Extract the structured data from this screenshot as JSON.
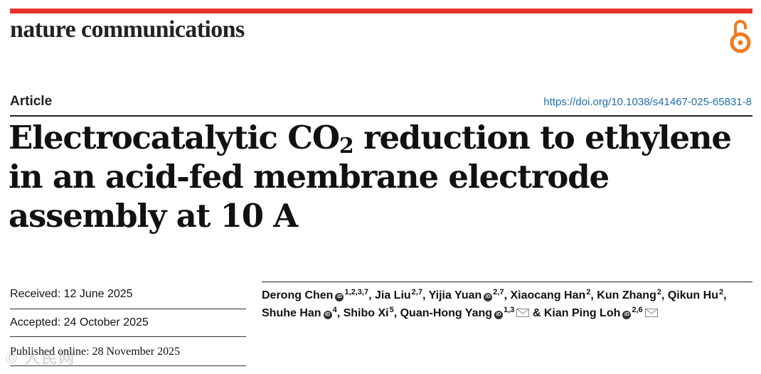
{
  "header": {
    "journal": "nature communications",
    "brand_color": "#e7332b",
    "oa_icon": "open-access-icon",
    "oa_color": "#f07c1e"
  },
  "meta": {
    "article_type": "Article",
    "doi": "https://doi.org/10.1038/s41467-025-65831-8"
  },
  "title": {
    "part1": "Electrocatalytic CO",
    "subscript": "2",
    "part2": " reduction to ethylene in an acid-fed membrane electrode assembly at 10 A"
  },
  "dates": {
    "received": "Received: 12 June 2025",
    "accepted": "Accepted: 24 October 2025",
    "published": "Published online: 28 November 2025"
  },
  "authors": [
    {
      "name": "Derong Chen",
      "orcid": true,
      "sup": "1,2,3,7",
      "sep": ", "
    },
    {
      "name": "Jia Liu",
      "orcid": false,
      "sup": "2,7",
      "sep": ", "
    },
    {
      "name": "Yijia Yuan",
      "orcid": true,
      "sup": "2,7",
      "sep": ", "
    },
    {
      "name": "Xiaocang Han",
      "orcid": false,
      "sup": "2",
      "sep": ", "
    },
    {
      "name": "Kun Zhang",
      "orcid": false,
      "sup": "2",
      "sep": ", "
    },
    {
      "name": "Qikun Hu",
      "orcid": false,
      "sup": "2",
      "sep": ", "
    },
    {
      "name": "Shuhe Han",
      "orcid": true,
      "sup": "4",
      "sep": ", "
    },
    {
      "name": "Shibo Xi",
      "orcid": false,
      "sup": "5",
      "sep": ", "
    },
    {
      "name": "Quan-Hong Yang",
      "orcid": true,
      "sup": "1,3",
      "mail": true,
      "sep": " & "
    },
    {
      "name": "Kian Ping Loh",
      "orcid": true,
      "sup": "2,6",
      "mail": true,
      "sep": ""
    }
  ],
  "watermark": "© 人民网"
}
